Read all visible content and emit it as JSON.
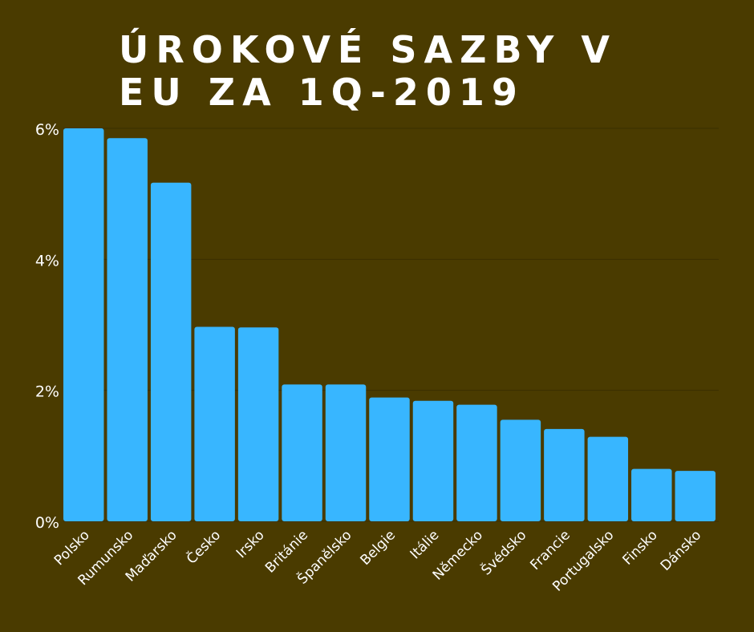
{
  "chart_data": {
    "type": "bar",
    "title_lines": [
      "ÚROKOVÉ SAZBY V",
      "EU ZA 1Q-2019"
    ],
    "categories": [
      "Polsko",
      "Rumunsko",
      "Maďarsko",
      "Česko",
      "Irsko",
      "Británie",
      "Španělsko",
      "Belgie",
      "Itálie",
      "Německo",
      "Švédsko",
      "Francie",
      "Portugalsko",
      "Finsko",
      "Dánsko"
    ],
    "values": [
      6.0,
      5.85,
      5.17,
      2.97,
      2.96,
      2.09,
      2.09,
      1.89,
      1.84,
      1.78,
      1.55,
      1.41,
      1.29,
      0.8,
      0.77
    ],
    "y_ticks": [
      "0%",
      "2%",
      "4%",
      "6%"
    ],
    "ylim": [
      0,
      6
    ],
    "grid": true,
    "colors": {
      "background": "#4a3b00",
      "bar": "#38b6ff",
      "text": "#ffffff",
      "grid": "#3a2f00"
    }
  }
}
